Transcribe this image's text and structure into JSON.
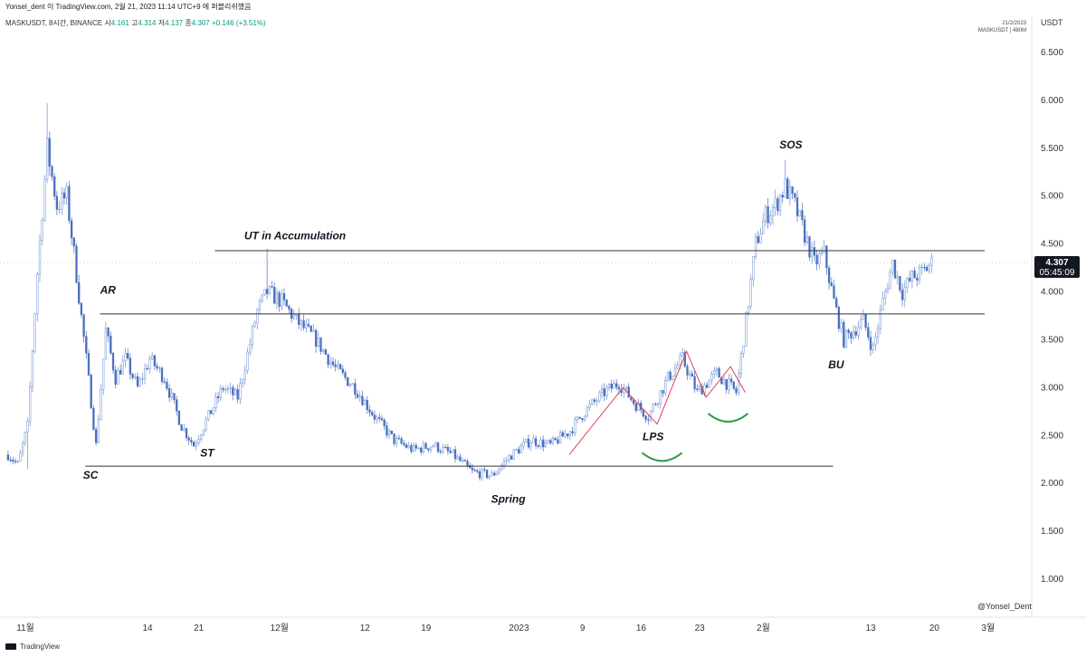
{
  "header": {
    "publish_line": "Yonsel_dent 이 TradingView.com, 2월 21, 2023 11:14 UTC+9 에 퍼블리쉬했음",
    "symbol_line": "MASKUSDT, 8시간, BINANCE",
    "ohlc": {
      "open_label": "시",
      "open": "4.161",
      "high_label": "고",
      "high": "4.314",
      "low_label": "저",
      "low": "4.137",
      "close_label": "종",
      "close": "4.307",
      "change": "+0.146 (+3.51%)"
    },
    "stamp_date": "21/2/2023",
    "stamp_sub": "MASKUSDT | 480M",
    "currency": "USDT"
  },
  "footer": {
    "brand": "TradingView",
    "watermark": "@Yonsel_Dent"
  },
  "price_label": {
    "value": "4.307",
    "countdown": "05:45:09",
    "color": "#131722"
  },
  "colors": {
    "up": "#6b8fd6",
    "down": "#4a6fbf",
    "level_line": "#333333",
    "red": "#e04050",
    "green": "#2e9e4a",
    "sos": "#d8364a"
  },
  "chart_data": {
    "type": "candlestick",
    "y_axis": {
      "min": 0.8,
      "max": 6.8,
      "ticks": [
        "6.500",
        "6.000",
        "5.500",
        "5.000",
        "4.500",
        "4.000",
        "3.500",
        "3.000",
        "2.500",
        "2.000",
        "1.500",
        "1.000"
      ]
    },
    "x_ticks": [
      "11월",
      "14",
      "21",
      "12월",
      "12",
      "19",
      "2023",
      "9",
      "16",
      "23",
      "2월",
      "13",
      "20",
      "3월"
    ],
    "x_tick_bar_index": [
      0,
      50,
      71,
      104,
      139,
      164,
      202,
      228,
      252,
      276,
      302,
      346,
      372,
      394
    ],
    "anchors": [
      {
        "i": 0,
        "v": 2.3
      },
      {
        "i": 4,
        "v": 2.2
      },
      {
        "i": 8,
        "v": 2.6
      },
      {
        "i": 12,
        "v": 4.2
      },
      {
        "i": 16,
        "v": 5.5
      },
      {
        "i": 20,
        "v": 4.9
      },
      {
        "i": 24,
        "v": 5.0
      },
      {
        "i": 27,
        "v": 4.4
      },
      {
        "i": 32,
        "v": 3.3
      },
      {
        "i": 36,
        "v": 2.4
      },
      {
        "i": 40,
        "v": 3.6
      },
      {
        "i": 44,
        "v": 3.1
      },
      {
        "i": 48,
        "v": 3.3
      },
      {
        "i": 53,
        "v": 3.0
      },
      {
        "i": 58,
        "v": 3.3
      },
      {
        "i": 64,
        "v": 3.1
      },
      {
        "i": 71,
        "v": 2.6
      },
      {
        "i": 76,
        "v": 2.4
      },
      {
        "i": 82,
        "v": 2.7
      },
      {
        "i": 88,
        "v": 3.0
      },
      {
        "i": 94,
        "v": 2.9
      },
      {
        "i": 102,
        "v": 3.8
      },
      {
        "i": 106,
        "v": 4.0
      },
      {
        "i": 112,
        "v": 3.9
      },
      {
        "i": 118,
        "v": 3.7
      },
      {
        "i": 126,
        "v": 3.5
      },
      {
        "i": 134,
        "v": 3.2
      },
      {
        "i": 142,
        "v": 3.0
      },
      {
        "i": 150,
        "v": 2.7
      },
      {
        "i": 158,
        "v": 2.45
      },
      {
        "i": 166,
        "v": 2.35
      },
      {
        "i": 174,
        "v": 2.4
      },
      {
        "i": 182,
        "v": 2.3
      },
      {
        "i": 190,
        "v": 2.12
      },
      {
        "i": 198,
        "v": 2.08
      },
      {
        "i": 206,
        "v": 2.3
      },
      {
        "i": 214,
        "v": 2.45
      },
      {
        "i": 222,
        "v": 2.4
      },
      {
        "i": 230,
        "v": 2.55
      },
      {
        "i": 236,
        "v": 2.75
      },
      {
        "i": 244,
        "v": 2.95
      },
      {
        "i": 250,
        "v": 3.05
      },
      {
        "i": 256,
        "v": 2.85
      },
      {
        "i": 262,
        "v": 2.7
      },
      {
        "i": 270,
        "v": 3.1
      },
      {
        "i": 276,
        "v": 3.3
      },
      {
        "i": 282,
        "v": 2.95
      },
      {
        "i": 290,
        "v": 3.15
      },
      {
        "i": 298,
        "v": 2.95
      },
      {
        "i": 302,
        "v": 3.7
      },
      {
        "i": 306,
        "v": 4.5
      },
      {
        "i": 310,
        "v": 4.8
      },
      {
        "i": 314,
        "v": 4.9
      },
      {
        "i": 318,
        "v": 5.1
      },
      {
        "i": 322,
        "v": 4.9
      },
      {
        "i": 326,
        "v": 4.6
      },
      {
        "i": 330,
        "v": 4.3
      },
      {
        "i": 334,
        "v": 4.4
      },
      {
        "i": 338,
        "v": 3.9
      },
      {
        "i": 342,
        "v": 3.5
      },
      {
        "i": 346,
        "v": 3.6
      },
      {
        "i": 350,
        "v": 3.7
      },
      {
        "i": 354,
        "v": 3.4
      },
      {
        "i": 358,
        "v": 3.9
      },
      {
        "i": 362,
        "v": 4.3
      },
      {
        "i": 366,
        "v": 4.0
      },
      {
        "i": 370,
        "v": 4.15
      },
      {
        "i": 374,
        "v": 4.2
      },
      {
        "i": 378,
        "v": 4.3
      }
    ],
    "spikes": [
      {
        "i": 16,
        "v": 5.97
      },
      {
        "i": 106,
        "v": 4.45
      },
      {
        "i": 318,
        "v": 5.38
      },
      {
        "i": 8,
        "v": 2.15
      }
    ],
    "levels": [
      {
        "name": "ut-line",
        "value": 4.43,
        "x_start_index": 85,
        "x_end_index": 400
      },
      {
        "name": "ar-line",
        "value": 3.77,
        "x_start_index": 38,
        "x_end_index": 400
      },
      {
        "name": "sc-line",
        "value": 2.18,
        "x_start_index": 32,
        "x_end_index": 338
      }
    ],
    "annotations": [
      {
        "name": "SC",
        "text": "SC",
        "i": 31,
        "v": 2.05,
        "color": "#131722"
      },
      {
        "name": "AR",
        "text": "AR",
        "i": 38,
        "v": 3.98,
        "color": "#131722"
      },
      {
        "name": "ST",
        "text": "ST",
        "i": 79,
        "v": 2.28,
        "color": "#131722"
      },
      {
        "name": "UT",
        "text": "UT in Accumulation",
        "i": 97,
        "v": 4.55,
        "color": "#131722"
      },
      {
        "name": "Spring",
        "text": "Spring",
        "i": 198,
        "v": 1.8,
        "color": "#131722"
      },
      {
        "name": "LPS",
        "text": "LPS",
        "i": 260,
        "v": 2.45,
        "color": "#131722"
      },
      {
        "name": "SOS",
        "text": "SOS",
        "i": 316,
        "v": 5.5,
        "color": "#d8364a"
      },
      {
        "name": "BU",
        "text": "BU",
        "i": 336,
        "v": 3.2,
        "color": "#131722"
      }
    ],
    "red_path": [
      {
        "i": 230,
        "v": 2.3
      },
      {
        "i": 252,
        "v": 3.0
      },
      {
        "i": 266,
        "v": 2.62
      },
      {
        "i": 278,
        "v": 3.38
      },
      {
        "i": 286,
        "v": 2.9
      },
      {
        "i": 296,
        "v": 3.22
      },
      {
        "i": 302,
        "v": 2.95
      }
    ],
    "green_arcs": [
      {
        "i_center": 268,
        "v": 2.32
      },
      {
        "i_center": 295,
        "v": 2.73
      }
    ],
    "last_price": 4.307
  }
}
